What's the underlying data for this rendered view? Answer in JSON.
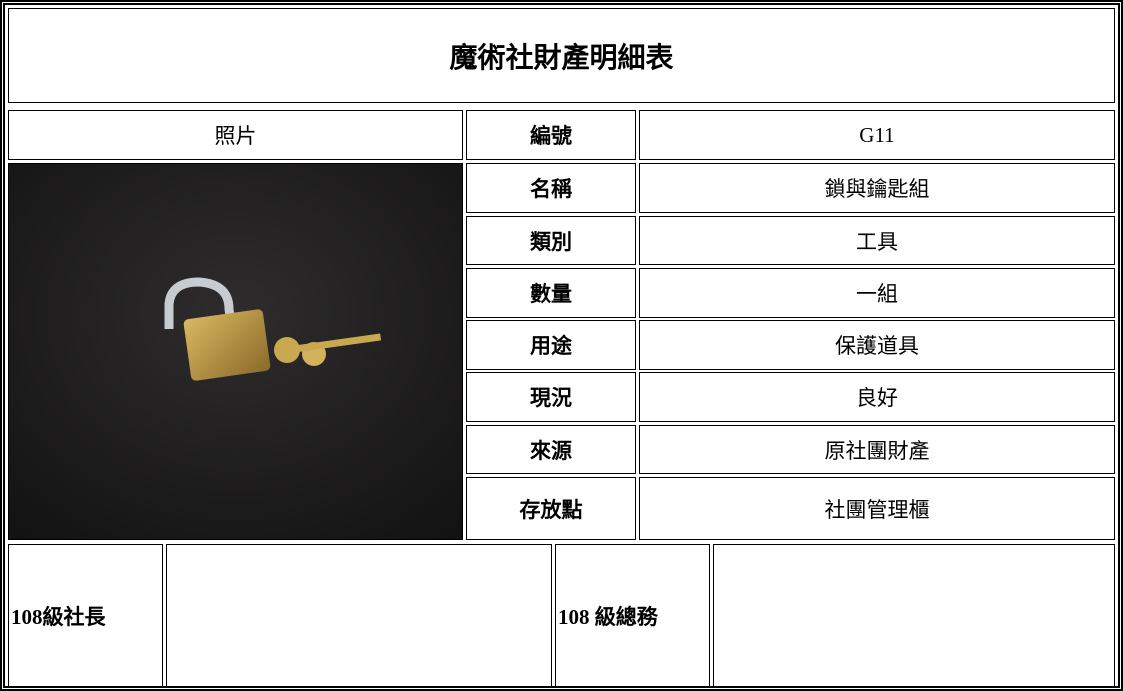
{
  "header": {
    "title": "魔術社財產明細表"
  },
  "table": {
    "photo_header": "照片",
    "rows": [
      [
        "編號",
        "G11"
      ],
      [
        "名稱",
        "鎖與鑰匙組"
      ],
      [
        "類別",
        "工具"
      ],
      [
        "數量",
        "一組"
      ],
      [
        "用途",
        "保護道具"
      ],
      [
        "現況",
        "良好"
      ],
      [
        "來源",
        "原社團財產"
      ],
      [
        "存放點",
        "社團管理櫃"
      ]
    ]
  },
  "footer": {
    "signatures": [
      "108級社長",
      "108 級總務"
    ]
  }
}
